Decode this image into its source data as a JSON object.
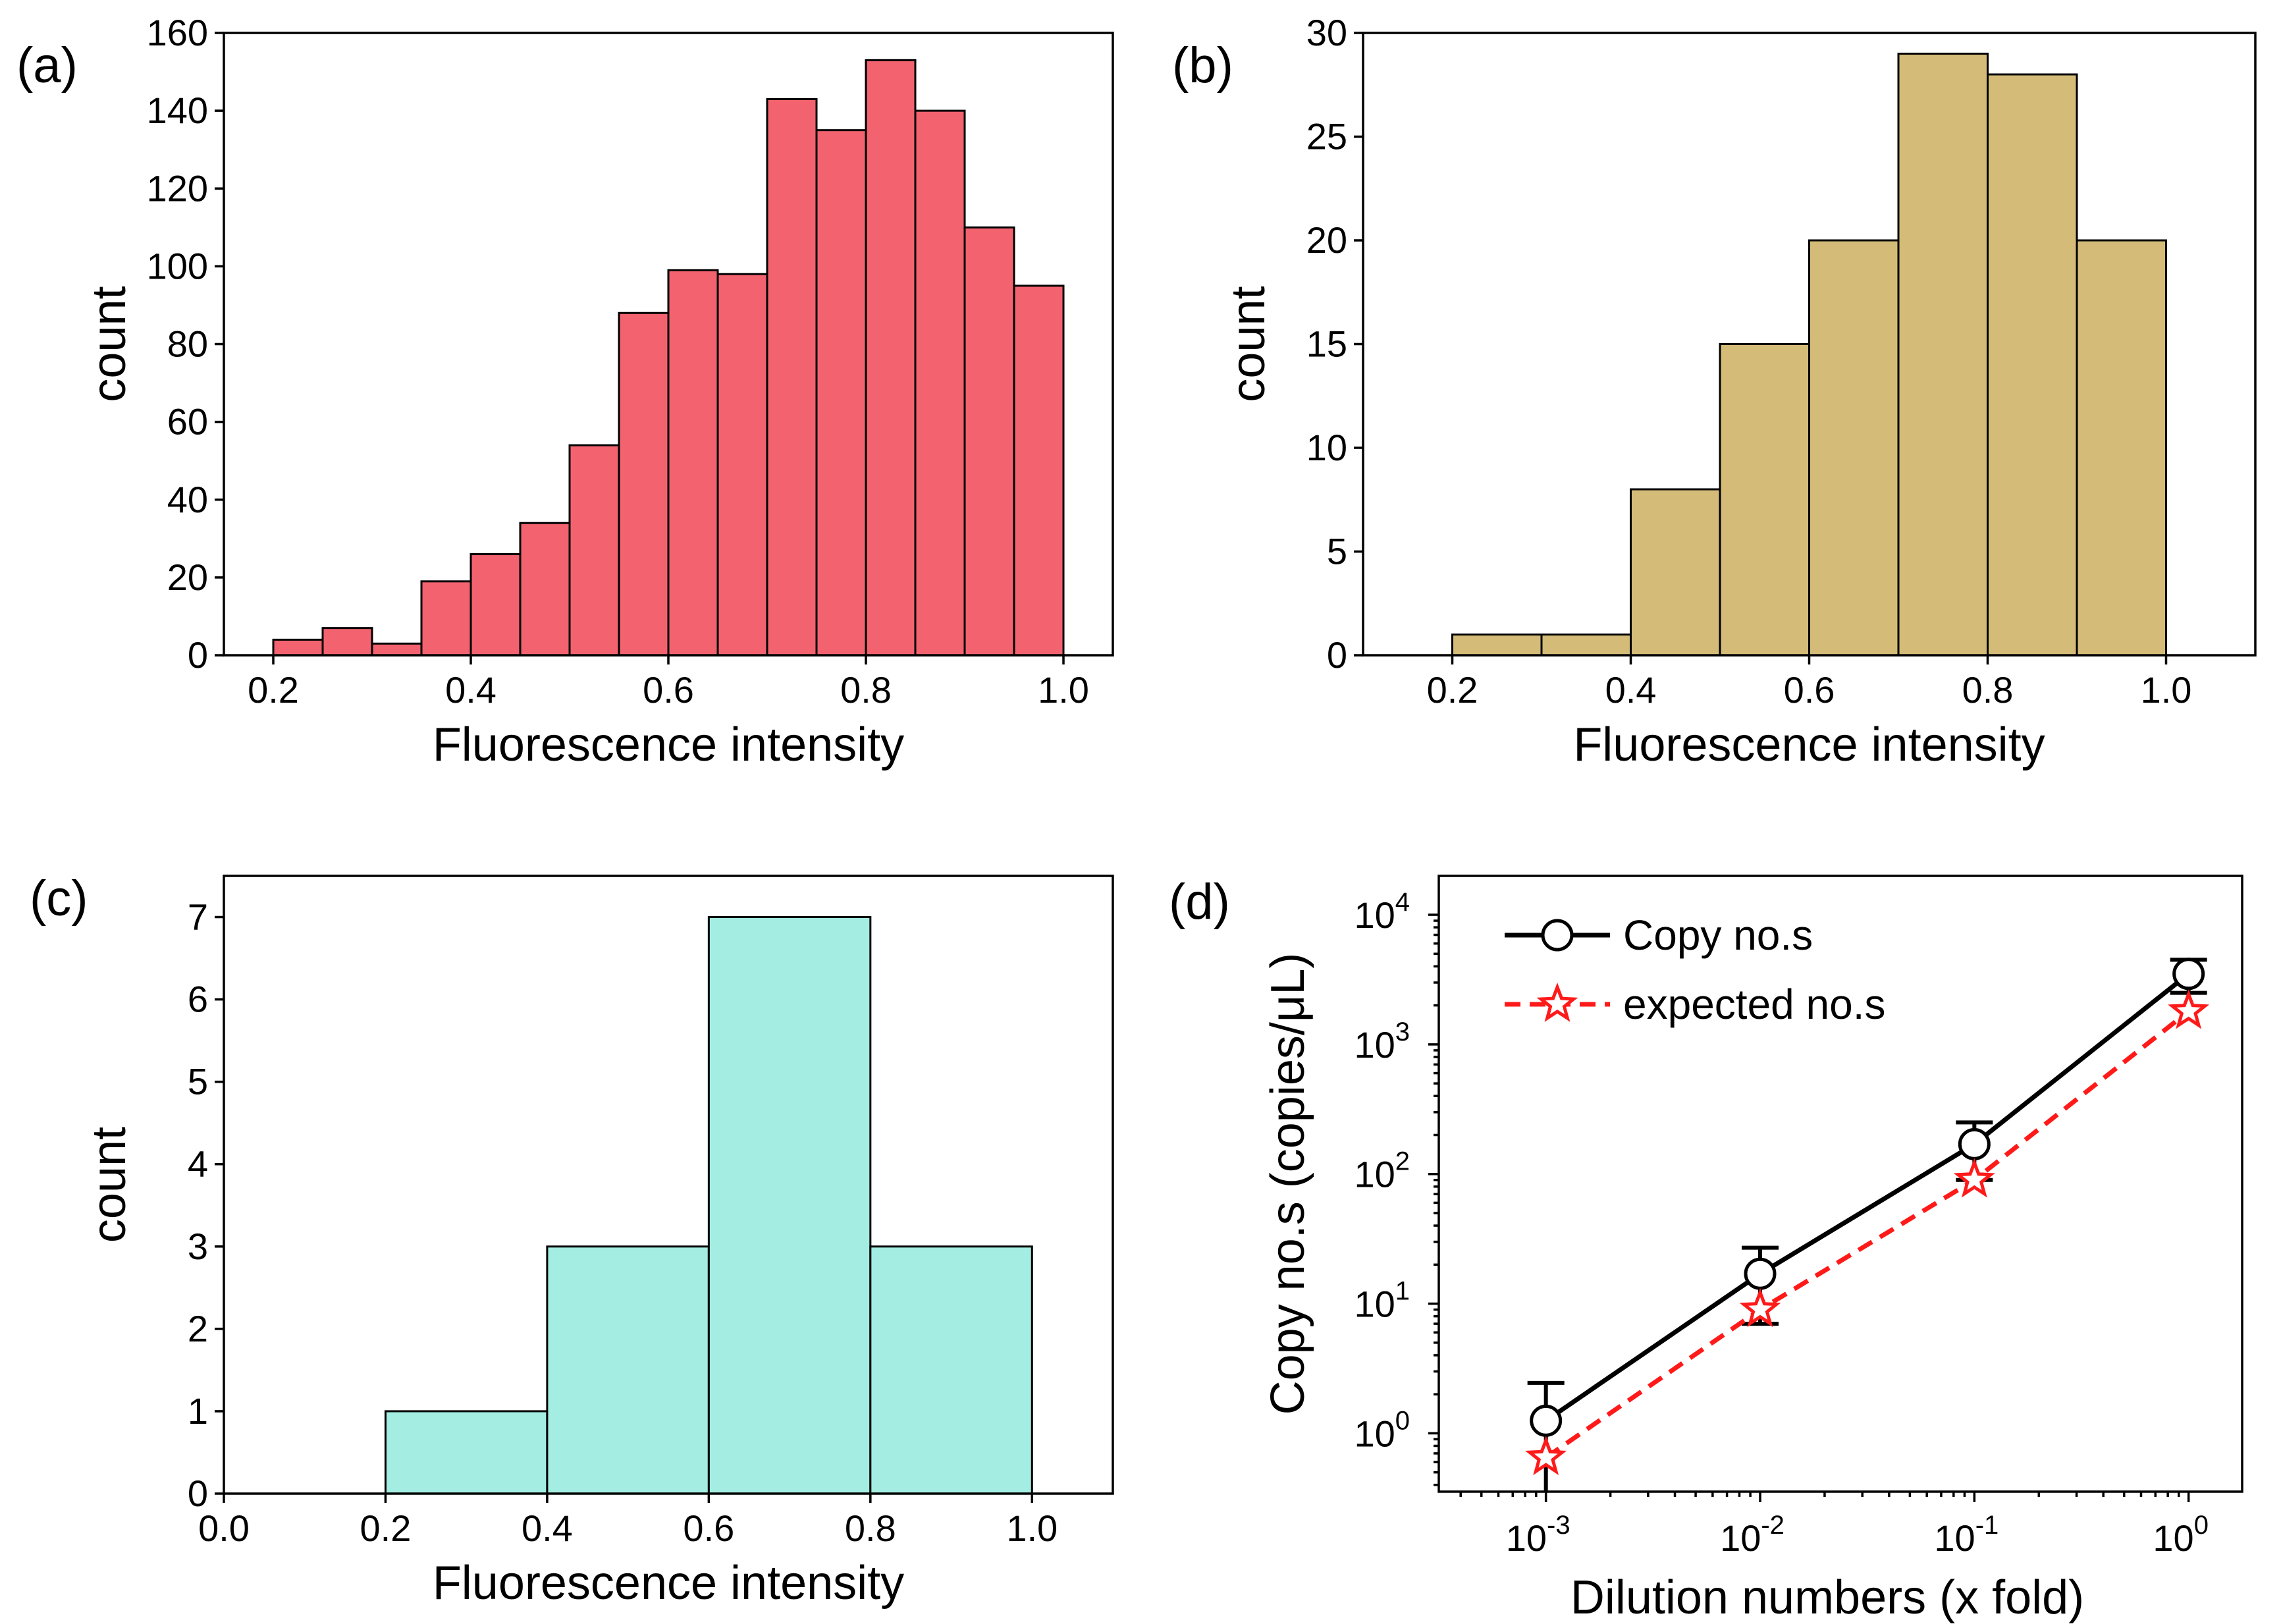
{
  "chart_data": [
    {
      "id": "a",
      "type": "bar",
      "panel_label": "(a)",
      "xlabel": "Fluorescence intensity",
      "ylabel": "count",
      "xlim": [
        0.15,
        1.05
      ],
      "ylim": [
        0,
        160
      ],
      "xticks": [
        0.2,
        0.4,
        0.6,
        0.8,
        1.0
      ],
      "xtick_labels": [
        "0.2",
        "0.4",
        "0.6",
        "0.8",
        "1.0"
      ],
      "yticks": [
        0,
        20,
        40,
        60,
        80,
        100,
        120,
        140,
        160
      ],
      "ytick_labels": [
        "0",
        "20",
        "40",
        "60",
        "80",
        "100",
        "120",
        "140",
        "160"
      ],
      "bin_start": 0.2,
      "bin_width": 0.05,
      "values": [
        4,
        7,
        3,
        19,
        26,
        34,
        54,
        88,
        99,
        98,
        143,
        135,
        153,
        140,
        110,
        95
      ],
      "color": "#f2636f"
    },
    {
      "id": "b",
      "type": "bar",
      "panel_label": "(b)",
      "xlabel": "Fluorescence intensity",
      "ylabel": "count",
      "xlim": [
        0.1,
        1.1
      ],
      "ylim": [
        0,
        30
      ],
      "xticks": [
        0.2,
        0.4,
        0.6,
        0.8,
        1.0
      ],
      "xtick_labels": [
        "0.2",
        "0.4",
        "0.6",
        "0.8",
        "1.0"
      ],
      "yticks": [
        0,
        5,
        10,
        15,
        20,
        25,
        30
      ],
      "ytick_labels": [
        "0",
        "5",
        "10",
        "15",
        "20",
        "25",
        "30"
      ],
      "bin_start": 0.2,
      "bin_width": 0.1,
      "values": [
        1,
        1,
        8,
        15,
        20,
        29,
        28,
        20
      ],
      "color": "#d4bc78"
    },
    {
      "id": "c",
      "type": "bar",
      "panel_label": "(c)",
      "xlabel": "Fluorescence intensity",
      "ylabel": "count",
      "xlim": [
        0,
        1.1
      ],
      "ylim": [
        0,
        7.5
      ],
      "xticks": [
        0.0,
        0.2,
        0.4,
        0.6,
        0.8,
        1.0
      ],
      "xtick_labels": [
        "0.0",
        "0.2",
        "0.4",
        "0.6",
        "0.8",
        "1.0"
      ],
      "yticks": [
        0,
        1,
        2,
        3,
        4,
        5,
        6,
        7
      ],
      "ytick_labels": [
        "0",
        "1",
        "2",
        "3",
        "4",
        "5",
        "6",
        "7"
      ],
      "bin_start": 0.2,
      "bin_width": 0.2,
      "values": [
        1,
        3,
        7,
        3
      ],
      "color": "#a3ede2"
    },
    {
      "id": "d",
      "type": "line",
      "panel_label": "(d)",
      "xlabel": "Dilution numbers (x fold)",
      "ylabel": "Copy no.s (copies/μL)",
      "xscale": "log",
      "yscale": "log",
      "xlim_log10": [
        -3.5,
        0.25
      ],
      "ylim_log10": [
        -0.45,
        4.3
      ],
      "xtick_exponents": [
        "-3",
        "-2",
        "-1",
        "0"
      ],
      "ytick_exponents": [
        "0",
        "1",
        "2",
        "3",
        "4"
      ],
      "tick_base": "10",
      "x": [
        0.001,
        0.01,
        0.1,
        1
      ],
      "series": [
        {
          "name": "Copy no.s",
          "values": [
            1.25,
            17,
            170,
            3500
          ],
          "err_low": [
            0.9,
            10,
            80,
            1000
          ],
          "err_high": [
            1.2,
            10,
            80,
            1000
          ],
          "marker": "circle",
          "line": "solid",
          "color": "#000000"
        },
        {
          "name": "expected no.s",
          "values": [
            0.65,
            9,
            90,
            1800
          ],
          "marker": "star",
          "line": "dashed",
          "color": "#ff1a1a"
        }
      ],
      "legend_position": "top-left"
    }
  ]
}
